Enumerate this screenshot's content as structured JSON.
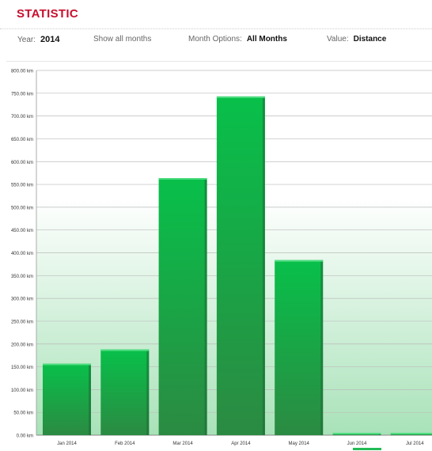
{
  "header": {
    "title": "STATISTIC"
  },
  "controls": {
    "year_label": "Year:",
    "year_value": "2014",
    "show_all_label": "Show all months",
    "month_options_label": "Month Options:",
    "month_options_value": "All Months",
    "value_label": "Value:",
    "value_value": "Distance"
  },
  "colors": {
    "title": "#c8102e",
    "bar_top": "#08c04a",
    "bar_bottom": "#2b8a42",
    "plot_gradient_top": "#ffffff",
    "plot_gradient_bottom": "#a8e2b8",
    "gridline": "#bbbbbb"
  },
  "chart_data": {
    "type": "bar",
    "title": "",
    "xlabel": "",
    "ylabel": "",
    "ylim": [
      0,
      800
    ],
    "ytick_step": 50,
    "ytick_unit": " km",
    "categories": [
      "Jan 2014",
      "Feb 2014",
      "Mar 2014",
      "Apr 2014",
      "May 2014",
      "Jun 2014",
      "Jul 2014"
    ],
    "values": [
      157,
      188,
      564,
      743,
      384,
      2,
      2
    ],
    "grid": true,
    "legend": "none"
  }
}
